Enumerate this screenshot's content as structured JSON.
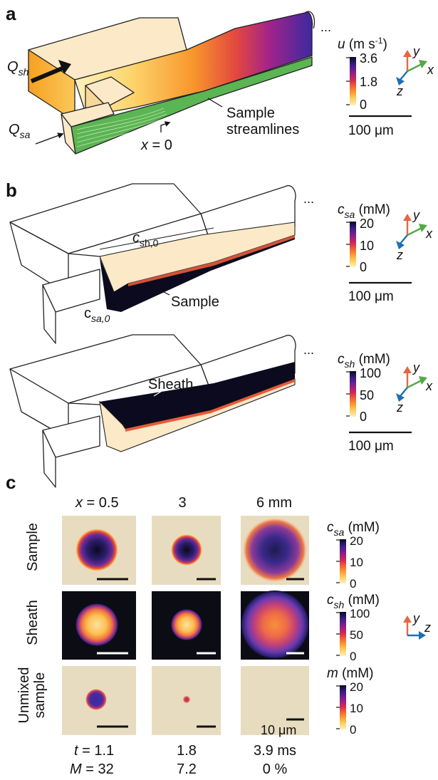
{
  "panels": {
    "a": {
      "letter": "a",
      "q_sh": "Q",
      "q_sh_sub": "sh",
      "q_sa": "Q",
      "q_sa_sub": "sa",
      "ellipsis": "...",
      "x0_var": "x",
      "x0_rest": " = 0",
      "streamlines_line1": "Sample",
      "streamlines_line2": "streamlines",
      "colorbar": {
        "var": "u",
        "unit_open": " (m s",
        "unit_sup": "-1",
        "unit_close": ")",
        "ticks": [
          "3.6",
          "1.8",
          "0"
        ]
      },
      "scalebar": "100 μm",
      "axes": {
        "y": "y",
        "x": "x",
        "z": "z"
      }
    },
    "b_top": {
      "letter": "b",
      "c_sh0": "c",
      "c_sh0_sub": "sh,0",
      "c_sa0": "c",
      "c_sa0_sub": "sa,0",
      "label": "Sample",
      "ellipsis": "...",
      "colorbar": {
        "var": "c",
        "var_sub": "sa",
        "unit": " (mM)",
        "ticks": [
          "20",
          "10",
          "0"
        ]
      },
      "scalebar": "100 μm",
      "axes": {
        "y": "y",
        "x": "x",
        "z": "z"
      }
    },
    "b_bottom": {
      "label": "Sheath",
      "ellipsis": "...",
      "colorbar": {
        "var": "c",
        "var_sub": "sh",
        "unit": " (mM)",
        "ticks": [
          "100",
          "50",
          "0"
        ]
      },
      "scalebar": "100 μm",
      "axes": {
        "y": "y",
        "x": "x",
        "z": "z"
      }
    },
    "c": {
      "letter": "c",
      "col_headers": {
        "x_var": "x",
        "first": " = 0.5",
        "second": "3",
        "third": "6 mm"
      },
      "row_labels": {
        "sample": "Sample",
        "sheath": "Sheath",
        "unmixed_line1": "Unmixed",
        "unmixed_line2": "sample"
      },
      "colorbars": {
        "sample": {
          "var": "c",
          "var_sub": "sa",
          "unit": " (mM)",
          "ticks": [
            "20",
            "10",
            "0"
          ]
        },
        "sheath": {
          "var": "c",
          "var_sub": "sh",
          "unit": " (mM)",
          "ticks": [
            "100",
            "50",
            "0"
          ]
        },
        "unmixed": {
          "var": "m",
          "unit": " (mM)",
          "ticks": [
            "20",
            "10",
            "0"
          ]
        }
      },
      "scalebar": "10 μm",
      "axes": {
        "y": "y",
        "z": "z"
      },
      "time_row": {
        "var": "t",
        "first": " = 1.1",
        "second": "1.8",
        "third": "3.9 ms"
      },
      "mixing_row": {
        "var": "M",
        "first": " = 32",
        "second": "7.2",
        "third": "0 %"
      }
    }
  },
  "colors": {
    "channel_fill": "#fbe9c8",
    "sample_green": "#5ab552",
    "background_tile": "#e8dcc0",
    "sheath_tile": "#0c0c14",
    "axis_y": "#e5673f",
    "axis_x": "#54a84a",
    "axis_z": "#1f6fb2",
    "colormap": [
      "#fdf2c0",
      "#fdc24a",
      "#f8772e",
      "#d6294f",
      "#8a1e8a",
      "#3a1f8a",
      "#0b0a1e"
    ]
  }
}
